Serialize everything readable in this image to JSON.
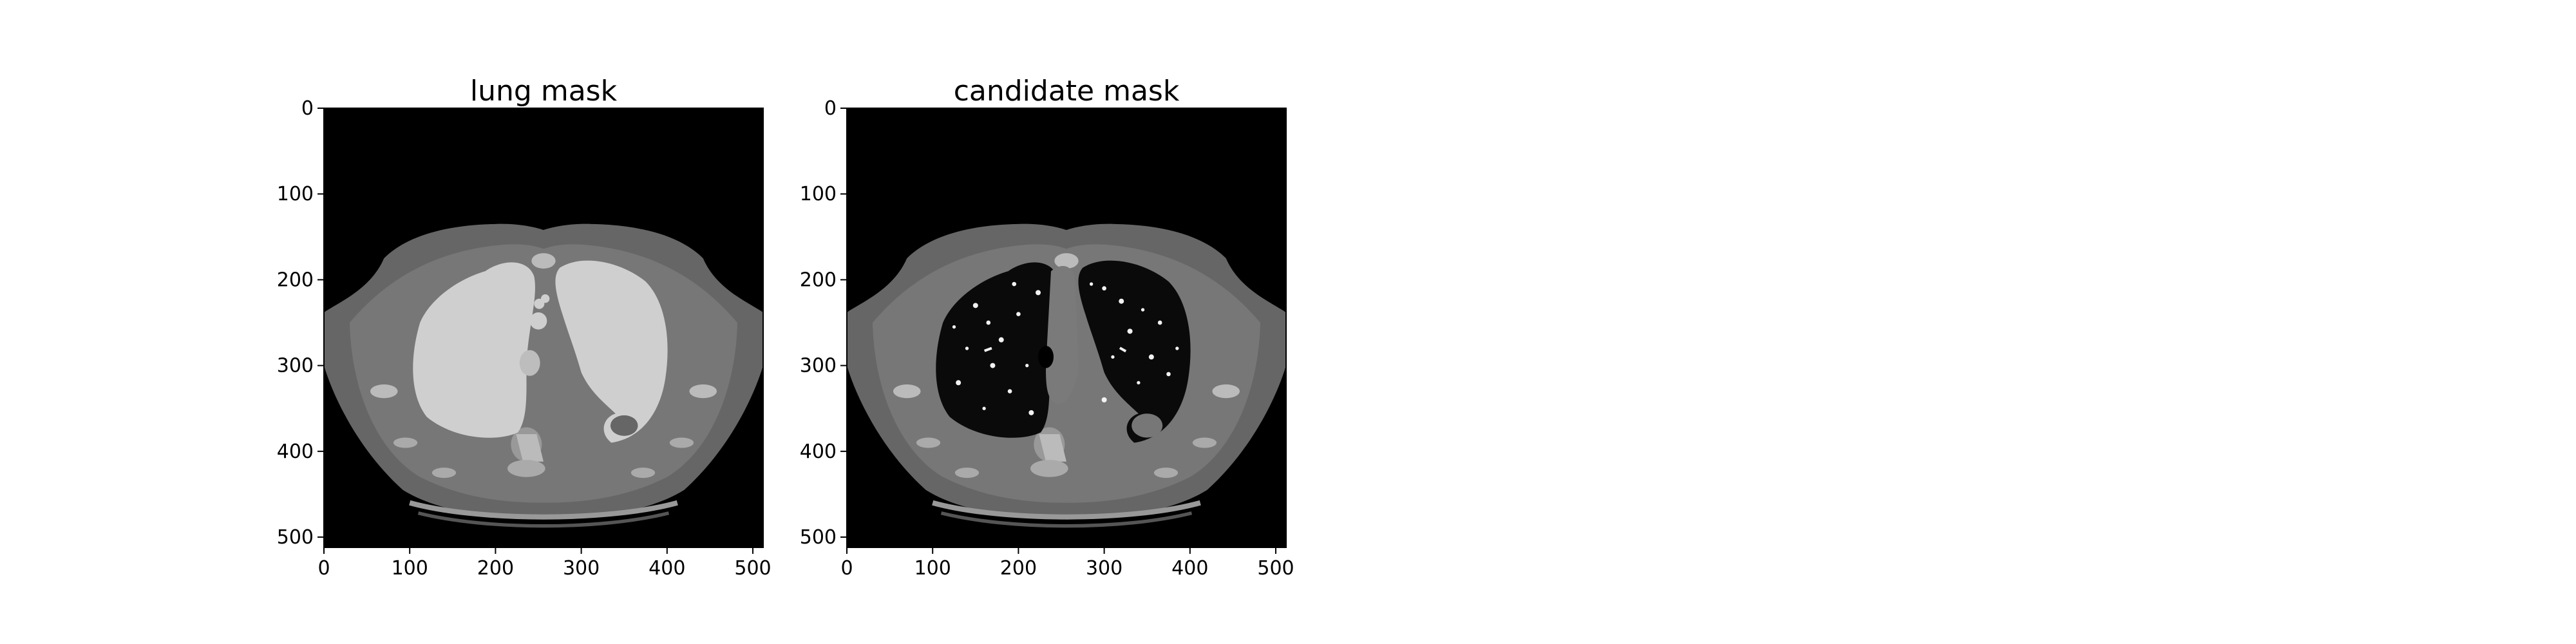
{
  "figure": {
    "panels": [
      {
        "title": "lung mask",
        "x_ticks": [
          "0",
          "100",
          "200",
          "300",
          "400",
          "500"
        ],
        "y_ticks": [
          "0",
          "100",
          "200",
          "300",
          "400",
          "500"
        ]
      },
      {
        "title": "candidate mask",
        "x_ticks": [
          "0",
          "100",
          "200",
          "300",
          "400",
          "500"
        ],
        "y_ticks": [
          "0",
          "100",
          "200",
          "300",
          "400",
          "500"
        ]
      }
    ]
  },
  "colors": {
    "background": "#000000",
    "body": "#6b6b6b",
    "body_inner": "#7b7b7b",
    "bone": "#bdbdbd",
    "lung_filled": "#cfcfcf",
    "lung_dark": "#0a0a0a",
    "vessel": "#f2f2f2"
  }
}
